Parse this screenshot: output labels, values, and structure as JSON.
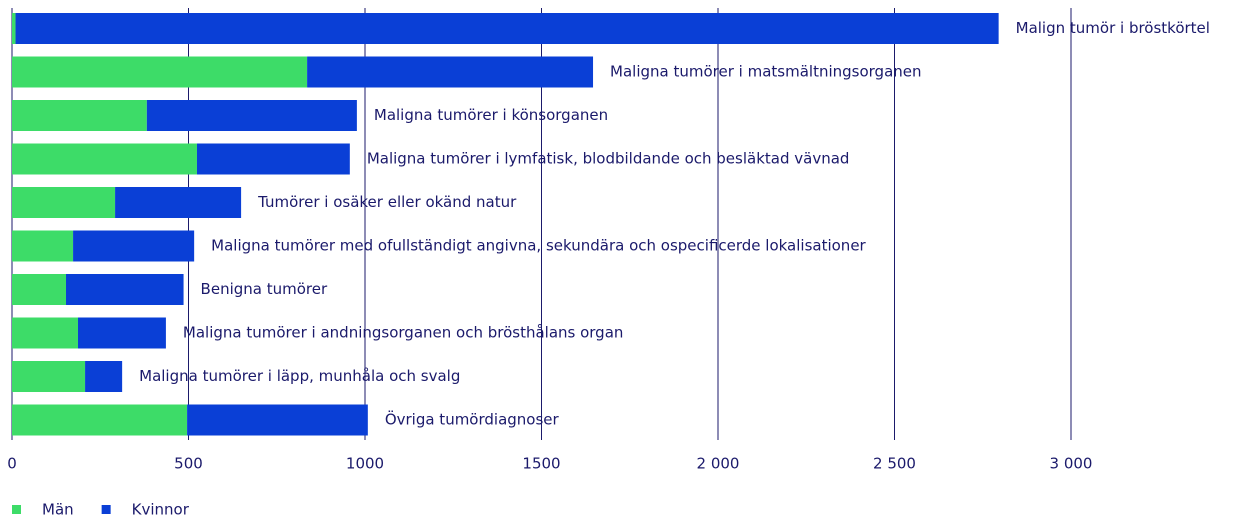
{
  "chart_data": {
    "type": "stacked-barh",
    "categories": [
      "Malign tumör i bröstkörtel",
      "Maligna tumörer i matsmältningsorganen",
      "Maligna tumörer i könsorganen",
      "Maligna tumörer i lymfatisk, blodbildande och besläktad vävnad",
      "Tumörer i osäker eller okänd natur",
      "Maligna tumörer med ofullständigt angivna, sekundära och ospecificerde lokalisationer",
      "Benigna tumörer",
      "Maligna tumörer i andningsorganen  och brösthålans organ",
      "Maligna tumörer i läpp, munhåla och svalg",
      "Övriga tumördiagnoser"
    ],
    "series": [
      {
        "name": "Män",
        "color": "#3ddc68",
        "values": [
          10,
          836,
          382,
          524,
          292,
          173,
          153,
          187,
          207,
          496
        ]
      },
      {
        "name": "Kvinnor",
        "color": "#0a3fd6",
        "values": [
          2785,
          810,
          595,
          433,
          357,
          343,
          333,
          249,
          105,
          512
        ]
      }
    ],
    "xlim": [
      0,
      3000
    ],
    "xticks": [
      0,
      500,
      1000,
      1500,
      {
        "value": 2000,
        "label": "2 000"
      },
      {
        "value": 2500,
        "label": "2 500"
      },
      {
        "value": 3000,
        "label": "3 000"
      }
    ],
    "grid": true
  }
}
